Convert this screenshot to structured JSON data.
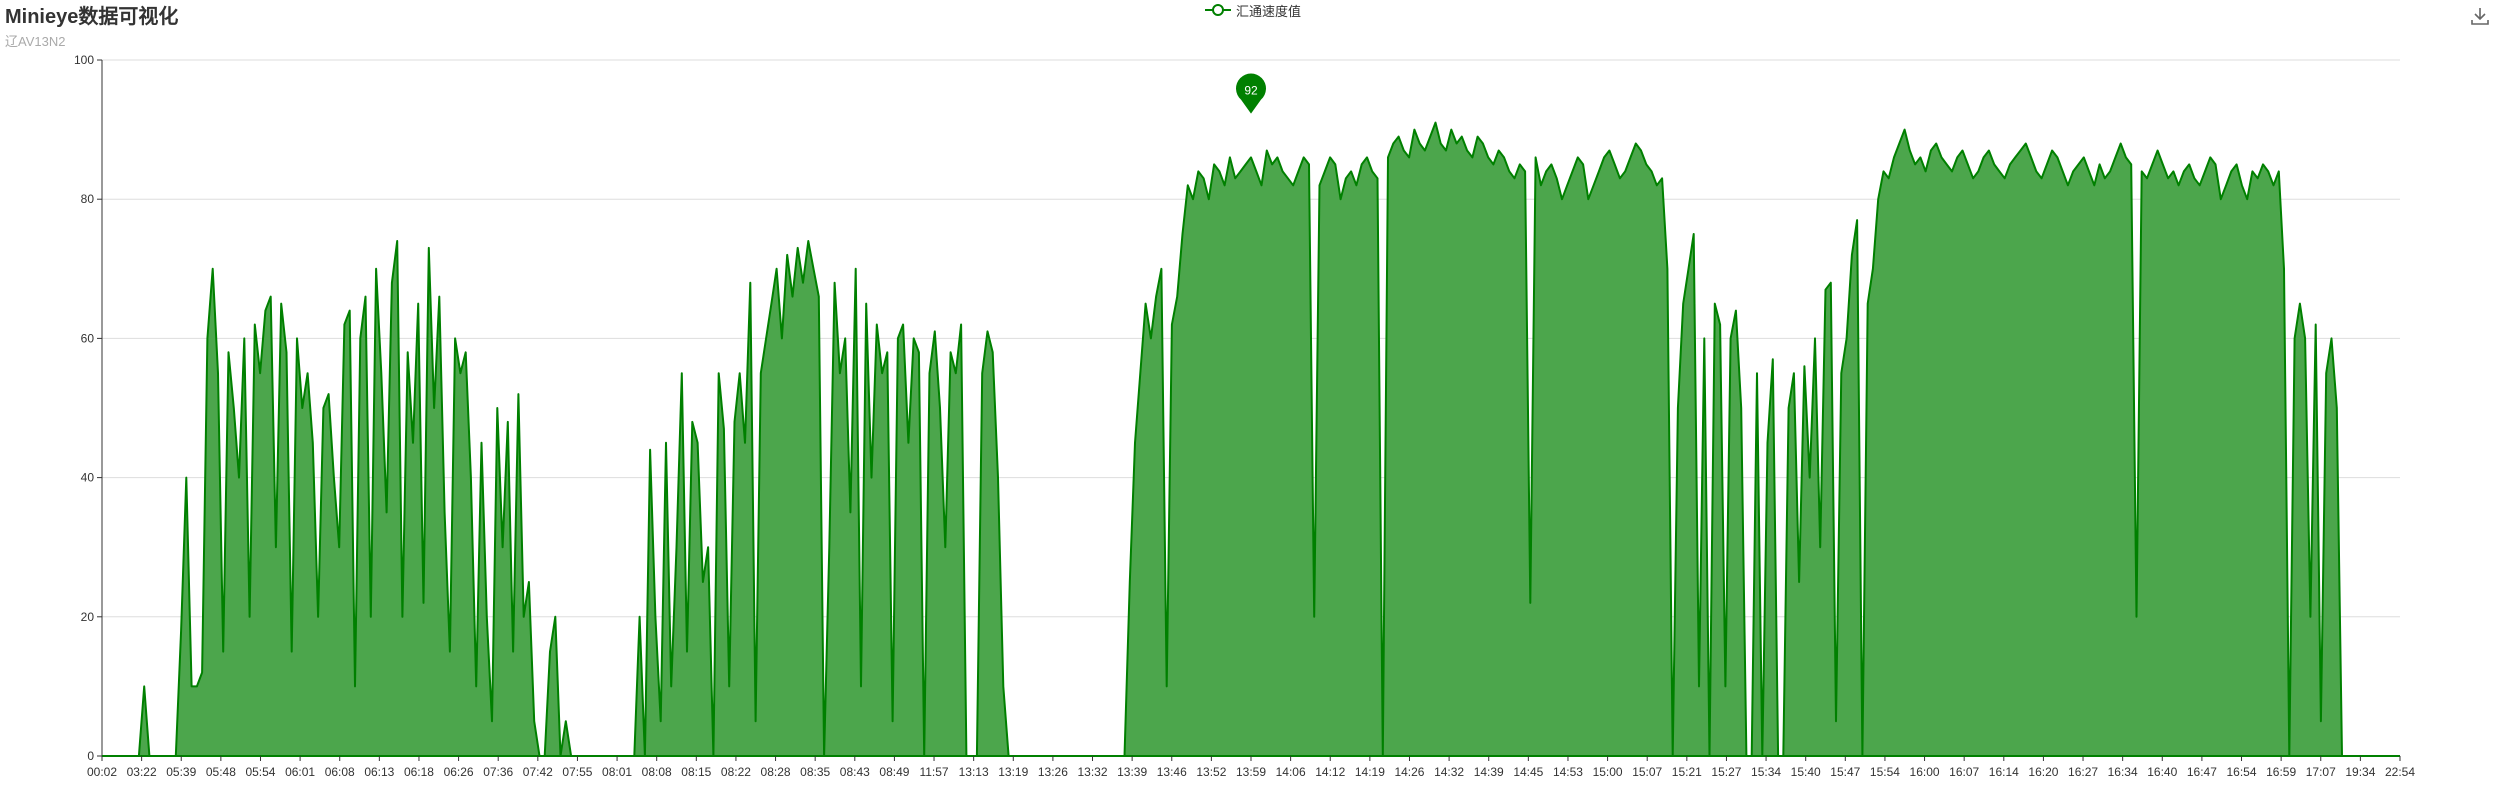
{
  "title": "Minieye数据可视化",
  "subtitle": "辽AV13N2",
  "legend": {
    "label": "汇通速度值"
  },
  "colors": {
    "line": "#008000",
    "area": "#4ca64c",
    "grid": "#dddddd",
    "axis": "#333333"
  },
  "icons": {
    "legend": "legend-line-circle-icon",
    "download": "download-icon"
  },
  "chart_data": {
    "type": "area",
    "title": "Minieye数据可视化",
    "subtitle": "辽AV13N2",
    "xlabel": "",
    "ylabel": "",
    "ylim": [
      0,
      100
    ],
    "yticks": [
      0,
      20,
      40,
      60,
      80,
      100
    ],
    "grid": true,
    "legend_position": "top-center",
    "x_tick_labels": [
      "00:02",
      "03:22",
      "05:39",
      "05:48",
      "05:54",
      "06:01",
      "06:08",
      "06:13",
      "06:18",
      "06:26",
      "07:36",
      "07:42",
      "07:55",
      "08:01",
      "08:08",
      "08:15",
      "08:22",
      "08:28",
      "08:35",
      "08:43",
      "08:49",
      "11:57",
      "13:13",
      "13:19",
      "13:26",
      "13:32",
      "13:39",
      "13:46",
      "13:52",
      "13:59",
      "14:06",
      "14:12",
      "14:19",
      "14:26",
      "14:32",
      "14:39",
      "14:45",
      "14:53",
      "15:00",
      "15:07",
      "15:21",
      "15:27",
      "15:34",
      "15:40",
      "15:47",
      "15:54",
      "16:00",
      "16:07",
      "16:14",
      "16:20",
      "16:27",
      "16:34",
      "16:40",
      "16:47",
      "16:54",
      "16:59",
      "17:07",
      "19:34",
      "22:54"
    ],
    "max_marker": {
      "value": 92,
      "tick_index": 29
    },
    "series": [
      {
        "name": "汇通速度值",
        "values": [
          0,
          0,
          0,
          0,
          0,
          0,
          0,
          0,
          10,
          0,
          0,
          0,
          0,
          0,
          0,
          18,
          40,
          10,
          10,
          12,
          60,
          70,
          55,
          15,
          58,
          50,
          40,
          60,
          20,
          62,
          55,
          64,
          66,
          30,
          65,
          58,
          15,
          60,
          50,
          55,
          45,
          20,
          50,
          52,
          40,
          30,
          62,
          64,
          10,
          60,
          66,
          20,
          70,
          55,
          35,
          68,
          74,
          20,
          58,
          45,
          65,
          22,
          73,
          50,
          66,
          35,
          15,
          60,
          55,
          58,
          40,
          10,
          45,
          20,
          5,
          50,
          30,
          48,
          15,
          52,
          20,
          25,
          5,
          0,
          0,
          15,
          20,
          0,
          5,
          0,
          0,
          0,
          0,
          0,
          0,
          0,
          0,
          0,
          0,
          0,
          0,
          0,
          20,
          0,
          44,
          20,
          5,
          45,
          10,
          30,
          55,
          15,
          48,
          45,
          25,
          30,
          0,
          55,
          47,
          10,
          48,
          55,
          45,
          68,
          5,
          55,
          60,
          65,
          70,
          60,
          72,
          66,
          73,
          68,
          74,
          70,
          66,
          0,
          30,
          68,
          55,
          60,
          35,
          70,
          10,
          65,
          40,
          62,
          55,
          58,
          5,
          60,
          62,
          45,
          60,
          58,
          0,
          55,
          61,
          50,
          30,
          58,
          55,
          62,
          0,
          0,
          0,
          55,
          61,
          58,
          40,
          10,
          0,
          0,
          0,
          0,
          0,
          0,
          0,
          0,
          0,
          0,
          0,
          0,
          0,
          0,
          0,
          0,
          0,
          0,
          0,
          0,
          0,
          0,
          0,
          25,
          45,
          55,
          65,
          60,
          66,
          70,
          10,
          62,
          66,
          75,
          82,
          80,
          84,
          83,
          80,
          85,
          84,
          82,
          86,
          83,
          84,
          85,
          86,
          84,
          82,
          87,
          85,
          86,
          84,
          83,
          82,
          84,
          86,
          85,
          20,
          82,
          84,
          86,
          85,
          80,
          83,
          84,
          82,
          85,
          86,
          84,
          83,
          0,
          86,
          88,
          89,
          87,
          86,
          90,
          88,
          87,
          89,
          91,
          88,
          87,
          90,
          88,
          89,
          87,
          86,
          89,
          88,
          86,
          85,
          87,
          86,
          84,
          83,
          85,
          84,
          22,
          86,
          82,
          84,
          85,
          83,
          80,
          82,
          84,
          86,
          85,
          80,
          82,
          84,
          86,
          87,
          85,
          83,
          84,
          86,
          88,
          87,
          85,
          84,
          82,
          83,
          70,
          0,
          50,
          65,
          70,
          75,
          10,
          60,
          0,
          65,
          62,
          10,
          60,
          64,
          50,
          0,
          0,
          55,
          0,
          45,
          57,
          0,
          0,
          50,
          55,
          25,
          56,
          40,
          60,
          30,
          67,
          68,
          5,
          55,
          60,
          72,
          77,
          0,
          65,
          70,
          80,
          84,
          83,
          86,
          88,
          90,
          87,
          85,
          86,
          84,
          87,
          88,
          86,
          85,
          84,
          86,
          87,
          85,
          83,
          84,
          86,
          87,
          85,
          84,
          83,
          85,
          86,
          87,
          88,
          86,
          84,
          83,
          85,
          87,
          86,
          84,
          82,
          84,
          85,
          86,
          84,
          82,
          85,
          83,
          84,
          86,
          88,
          86,
          85,
          20,
          84,
          83,
          85,
          87,
          85,
          83,
          84,
          82,
          84,
          85,
          83,
          82,
          84,
          86,
          85,
          80,
          82,
          84,
          85,
          82,
          80,
          84,
          83,
          85,
          84,
          82,
          84,
          70,
          0,
          60,
          65,
          60,
          20,
          62,
          5,
          55,
          60,
          50,
          0,
          0,
          0,
          0,
          0,
          0,
          0,
          0,
          0,
          0,
          0,
          0
        ]
      }
    ]
  }
}
